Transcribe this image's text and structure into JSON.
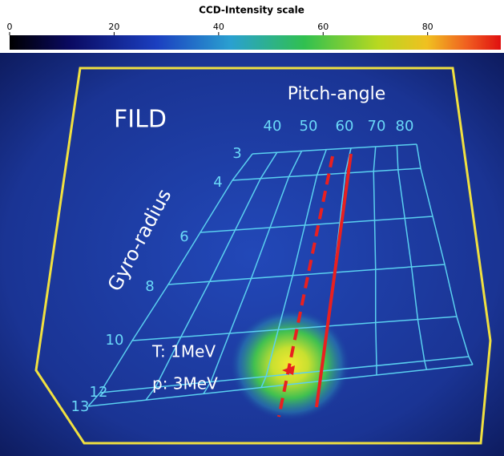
{
  "chart_data": {
    "type": "image",
    "title": "CCD-Intensity scale",
    "clim": [
      0,
      94
    ],
    "cticks": [
      0,
      20,
      40,
      60,
      80
    ],
    "annotations": {
      "label": "FILD",
      "pitch_axis_title": "Pitch-angle",
      "gyro_axis_title": "Gyro-radius",
      "pitch_angle_labels": [
        40,
        50,
        60,
        70,
        80
      ],
      "gyro_radius_labels": [
        3,
        4,
        6,
        8,
        10,
        12,
        13
      ],
      "t_label": "T: 1MeV",
      "p_label": "p: 3MeV"
    }
  }
}
